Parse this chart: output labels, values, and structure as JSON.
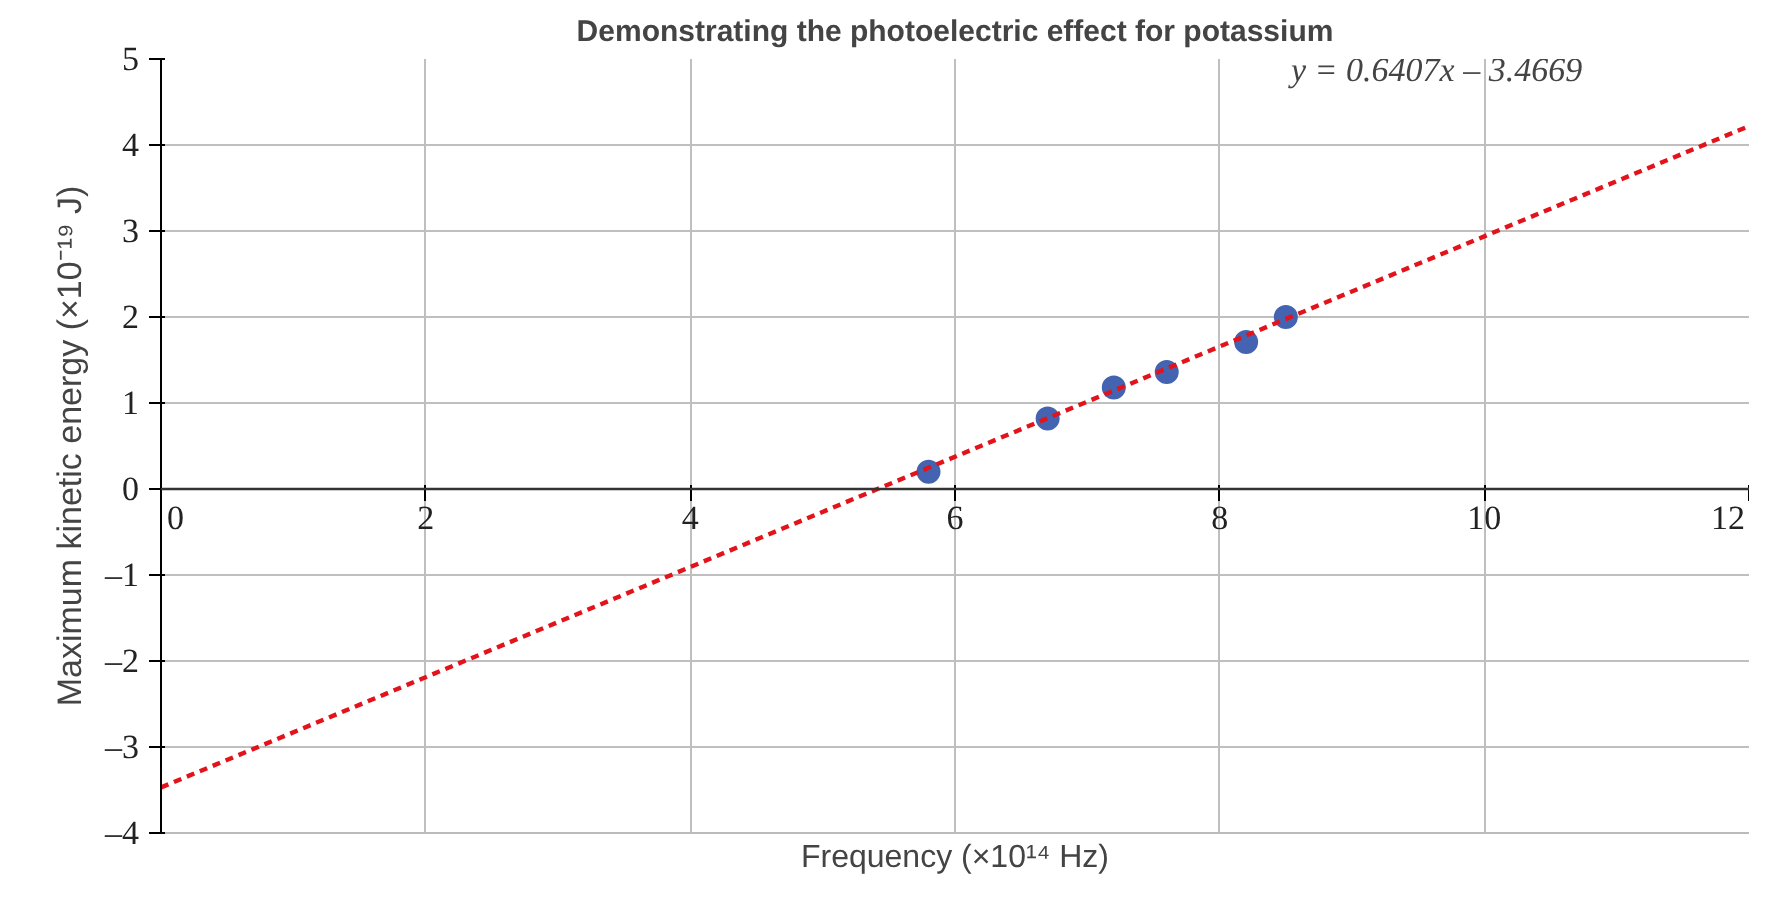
{
  "chart_data": {
    "type": "scatter",
    "title": "Demonstrating the photoelectric effect for potassium",
    "xlabel": "Frequency (×10¹⁴ Hz)",
    "ylabel": "Maximum kinetic energy (×10⁻¹⁹ J)",
    "x": [
      5.8,
      6.7,
      7.2,
      7.6,
      8.2,
      8.5
    ],
    "series": [
      {
        "color": "#4463b0",
        "marker": "circle",
        "values": [
          0.2,
          0.82,
          1.18,
          1.36,
          1.71,
          2.0
        ]
      },
      {
        "type": "line",
        "color": "#e3131b",
        "line_style": "dashed",
        "x": [
          0,
          12
        ],
        "values": [
          -3.47,
          4.22
        ]
      }
    ],
    "annotations": [
      "y = 0.6407x – 3.4669"
    ],
    "xlim": [
      0,
      12
    ],
    "xticks": [
      0,
      2,
      4,
      6,
      8,
      10,
      12
    ],
    "ylim": [
      -4,
      5
    ],
    "yticks": [
      {
        "value": -4,
        "label": "–4"
      },
      {
        "value": -3,
        "label": "–3"
      },
      {
        "value": -2,
        "label": "–2"
      },
      {
        "value": -1,
        "label": "–1"
      },
      0,
      1,
      2,
      3,
      4,
      5
    ],
    "grid": true
  }
}
